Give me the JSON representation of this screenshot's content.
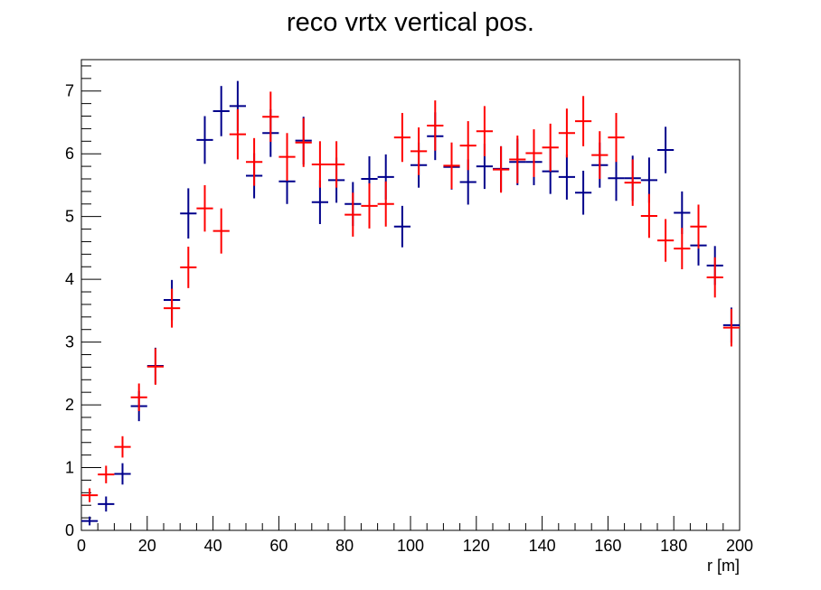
{
  "chart_data": {
    "type": "scatter",
    "title": "reco vrtx vertical pos.",
    "xlabel": "r [m]",
    "ylabel": "",
    "xlim": [
      0,
      200
    ],
    "ylim": [
      0,
      7.5
    ],
    "x_ticks": [
      0,
      20,
      40,
      60,
      80,
      100,
      120,
      140,
      160,
      180,
      200
    ],
    "y_ticks": [
      0,
      1,
      2,
      3,
      4,
      5,
      6,
      7
    ],
    "bin_width": 5,
    "legend": "none",
    "grid": false,
    "series": [
      {
        "name": "blue",
        "color": "#00008b",
        "x": [
          2.5,
          7.5,
          12.5,
          17.5,
          22.5,
          27.5,
          32.5,
          37.5,
          42.5,
          47.5,
          52.5,
          57.5,
          62.5,
          67.5,
          72.5,
          77.5,
          82.5,
          87.5,
          92.5,
          97.5,
          102.5,
          107.5,
          112.5,
          117.5,
          122.5,
          127.5,
          132.5,
          137.5,
          142.5,
          147.5,
          152.5,
          157.5,
          162.5,
          167.5,
          172.5,
          177.5,
          182.5,
          187.5,
          192.5,
          197.5
        ],
        "y": [
          0.15,
          0.42,
          0.9,
          1.98,
          2.62,
          3.67,
          5.05,
          6.22,
          6.68,
          6.76,
          5.65,
          6.33,
          5.56,
          6.21,
          5.23,
          5.58,
          5.2,
          5.6,
          5.63,
          4.84,
          5.82,
          6.28,
          5.79,
          5.55,
          5.8,
          5.76,
          5.87,
          5.87,
          5.72,
          5.63,
          5.38,
          5.82,
          5.61,
          5.61,
          5.58,
          6.06,
          5.06,
          4.54,
          4.22,
          3.27
        ],
        "yerr": [
          0.07,
          0.12,
          0.17,
          0.24,
          0.29,
          0.32,
          0.4,
          0.38,
          0.4,
          0.4,
          0.36,
          0.38,
          0.36,
          0.38,
          0.35,
          0.36,
          0.35,
          0.36,
          0.36,
          0.33,
          0.36,
          0.38,
          0.36,
          0.36,
          0.36,
          0.36,
          0.37,
          0.37,
          0.36,
          0.36,
          0.35,
          0.36,
          0.36,
          0.36,
          0.36,
          0.37,
          0.34,
          0.32,
          0.31,
          0.28
        ]
      },
      {
        "name": "red",
        "color": "#ff0000",
        "x": [
          2.5,
          7.5,
          12.5,
          17.5,
          22.5,
          27.5,
          32.5,
          37.5,
          42.5,
          47.5,
          52.5,
          57.5,
          62.5,
          67.5,
          72.5,
          77.5,
          82.5,
          87.5,
          92.5,
          97.5,
          102.5,
          107.5,
          112.5,
          117.5,
          122.5,
          127.5,
          132.5,
          137.5,
          142.5,
          147.5,
          152.5,
          157.5,
          162.5,
          167.5,
          172.5,
          177.5,
          182.5,
          187.5,
          192.5,
          197.5
        ],
        "y": [
          0.56,
          0.89,
          1.33,
          2.12,
          2.61,
          3.54,
          4.19,
          5.13,
          4.77,
          6.31,
          5.87,
          6.59,
          5.95,
          6.18,
          5.83,
          5.83,
          5.03,
          5.17,
          5.2,
          6.26,
          6.04,
          6.45,
          5.81,
          6.13,
          6.36,
          5.75,
          5.91,
          6.01,
          6.1,
          6.33,
          6.52,
          5.98,
          6.26,
          5.54,
          5.01,
          4.62,
          4.49,
          4.84,
          4.03,
          3.23
        ],
        "yerr": [
          0.11,
          0.14,
          0.17,
          0.22,
          0.29,
          0.31,
          0.33,
          0.37,
          0.36,
          0.4,
          0.38,
          0.4,
          0.38,
          0.39,
          0.37,
          0.37,
          0.35,
          0.36,
          0.36,
          0.39,
          0.38,
          0.4,
          0.37,
          0.39,
          0.4,
          0.37,
          0.38,
          0.38,
          0.38,
          0.39,
          0.4,
          0.38,
          0.39,
          0.37,
          0.35,
          0.34,
          0.33,
          0.35,
          0.32,
          0.3
        ]
      }
    ]
  }
}
